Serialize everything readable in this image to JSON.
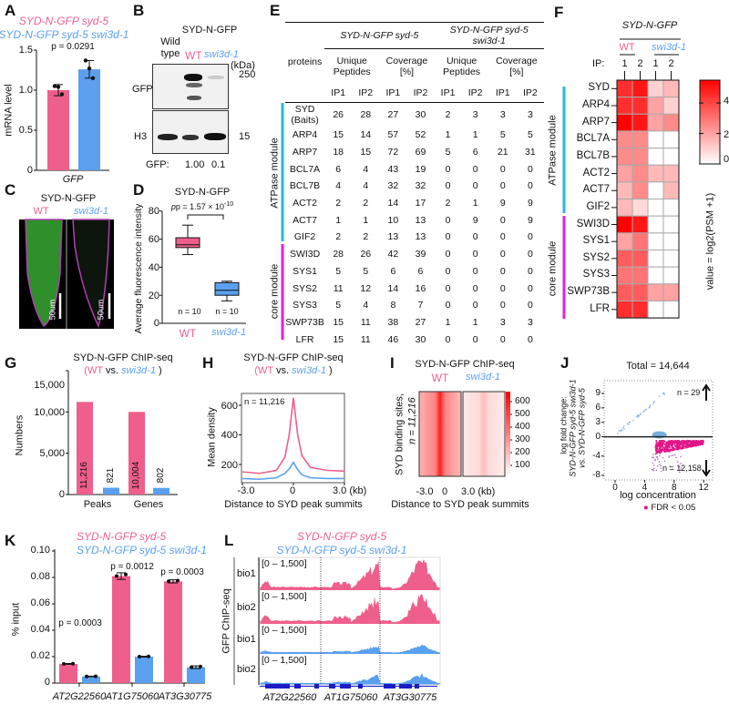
{
  "panel_labels": [
    "A",
    "B",
    "C",
    "D",
    "E",
    "F",
    "G",
    "H",
    "I",
    "J",
    "K",
    "L"
  ],
  "colors": {
    "wt": "#ef5f8c",
    "mutant": "#5aa0ee",
    "atpase_module": "#29b6e6",
    "core_module": "#e020e0",
    "heat": "#ff1a1a"
  },
  "legend": {
    "wt": "SYD-N-GFP syd-5",
    "mutant": "SYD-N-GFP syd-5 swi3d-1"
  },
  "B": {
    "header": "SYD-N-GFP",
    "wild_type": "Wild type",
    "wt": "WT",
    "mutant": "swi3d-1",
    "kda": "(kDa)",
    "m250": "250",
    "m15": "15",
    "gfp": "GFP",
    "h3": "H3",
    "quant_label": "GFP:",
    "quant_wt": "1.00",
    "quant_mut": "0.1"
  },
  "C": {
    "title": "SYD-N-GFP",
    "wt": "WT",
    "mutant": "swi3d-1",
    "scale": "50um"
  },
  "chipseq_title": "SYD-N-GFP ChIP-seq",
  "vs": {
    "open": "(",
    "wt": "WT",
    "vs": " vs. ",
    "mutant": "swi3d-1",
    "close": " )"
  },
  "table": {
    "group1": "SYD-N-GFP syd-5",
    "group2": "SYD-N-GFP syd-5 swi3d-1",
    "proteins": "proteins",
    "sub": [
      "Unique Peptides",
      "Coverage [%]",
      "Unique Peptides",
      "Coverage [%]"
    ],
    "ip": [
      "IP1",
      "IP2",
      "IP1",
      "IP2",
      "IP1",
      "IP2",
      "IP1",
      "IP2"
    ],
    "module_atpase": "ATPase module",
    "module_core": "core module",
    "rows": [
      {
        "name": "SYD (Baits)",
        "v": [
          26,
          28,
          27,
          30,
          2,
          3,
          3,
          3
        ],
        "module": "atpase"
      },
      {
        "name": "ARP4",
        "v": [
          15,
          14,
          57,
          52,
          1,
          1,
          5,
          5
        ],
        "module": "atpase"
      },
      {
        "name": "ARP7",
        "v": [
          18,
          15,
          72,
          69,
          5,
          6,
          21,
          31
        ],
        "module": "atpase"
      },
      {
        "name": "BCL7A",
        "v": [
          6,
          4,
          43,
          19,
          0,
          0,
          0,
          0
        ],
        "module": "atpase"
      },
      {
        "name": "BCL7B",
        "v": [
          4,
          4,
          32,
          32,
          0,
          0,
          0,
          0
        ],
        "module": "atpase"
      },
      {
        "name": "ACT2",
        "v": [
          2,
          2,
          14,
          17,
          2,
          1,
          9,
          9
        ],
        "module": "atpase"
      },
      {
        "name": "ACT7",
        "v": [
          1,
          1,
          10,
          13,
          0,
          9,
          0,
          9
        ],
        "module": "atpase"
      },
      {
        "name": "GIF2",
        "v": [
          2,
          2,
          13,
          13,
          0,
          0,
          0,
          0
        ],
        "module": "atpase"
      },
      {
        "name": "SWI3D",
        "v": [
          28,
          26,
          42,
          39,
          0,
          0,
          0,
          0
        ],
        "module": "core"
      },
      {
        "name": "SYS1",
        "v": [
          5,
          5,
          6,
          6,
          0,
          0,
          0,
          0
        ],
        "module": "core"
      },
      {
        "name": "SYS2",
        "v": [
          11,
          12,
          14,
          16,
          0,
          0,
          0,
          0
        ],
        "module": "core"
      },
      {
        "name": "SYS3",
        "v": [
          5,
          4,
          8,
          7,
          0,
          0,
          0,
          0
        ],
        "module": "core"
      },
      {
        "name": "SWP73B",
        "v": [
          15,
          11,
          38,
          27,
          1,
          1,
          3,
          3
        ],
        "module": "core"
      },
      {
        "name": "LFR",
        "v": [
          15,
          11,
          46,
          30,
          0,
          0,
          0,
          0
        ],
        "module": "core"
      }
    ]
  },
  "I": {
    "ylabel1": "SYD binding sites,",
    "ylabel2": "n = 11,216",
    "wt": "WT",
    "mutant": "swi3d-1",
    "ticks": [
      "600",
      "500",
      "400",
      "300",
      "200",
      "100"
    ],
    "x_ticks": [
      "-3.0",
      "0",
      "3.0 (kb)"
    ],
    "xlabel": "Distance to SYD peak summits"
  },
  "L": {
    "range": "[0 – 1,500]",
    "tracks": [
      "bio1",
      "bio2",
      "bio1",
      "bio2"
    ],
    "ylabel": "GFP ChIP-seq",
    "genes": [
      "AT2G22560",
      "AT1G75060",
      "AT3G30775"
    ]
  },
  "chart_data": [
    {
      "type": "bar",
      "panel": "A",
      "categories": [
        "GFP"
      ],
      "xlabel": "GFP",
      "ylabel": "mRNA level",
      "ylim": [
        0,
        1.5
      ],
      "yticks": [
        "0",
        "0.5",
        "1.0",
        "1.5"
      ],
      "yticks_v": [
        0,
        0.5,
        1.0,
        1.5
      ],
      "p": "p = 0.0291",
      "series": [
        {
          "name": "SYD-N-GFP syd-5",
          "values": [
            1.0
          ],
          "err": [
            0.07
          ],
          "points": [
            1.05,
            1.04,
            0.95
          ]
        },
        {
          "name": "SYD-N-GFP syd-5 swi3d-1",
          "values": [
            1.26
          ],
          "err": [
            0.11
          ],
          "points": [
            1.37,
            1.27,
            1.15
          ]
        }
      ]
    },
    {
      "type": "box",
      "panel": "D",
      "title": "SYD-N-GFP",
      "ylabel": "Average fluorescence intensity",
      "ylim": [
        0,
        80
      ],
      "yticks": [
        "0",
        "20",
        "40",
        "60",
        "80"
      ],
      "yticks_v": [
        0,
        20,
        40,
        60,
        80
      ],
      "p_base": "p = 1.57 × 10",
      "p_exp": "-10",
      "categories": [
        "WT",
        "swi3d-1"
      ],
      "n": [
        "n = 10",
        "n = 10"
      ],
      "boxes": [
        {
          "min": 49,
          "q1": 54,
          "median": 56,
          "q3": 61,
          "max": 70
        },
        {
          "min": 16,
          "q1": 20,
          "median": 23.5,
          "q3": 29,
          "max": 30
        }
      ]
    },
    {
      "type": "bar",
      "panel": "G",
      "title": "SYD-N-GFP ChIP-seq",
      "ylabel": "Numbers",
      "ylim": [
        0,
        15000
      ],
      "yticks": [
        "0",
        "5,000",
        "10,000",
        "15,000"
      ],
      "yticks_v": [
        0,
        5000,
        10000,
        15000
      ],
      "categories": [
        "Peaks",
        "Genes"
      ],
      "series": [
        {
          "name": "WT",
          "values": [
            11216,
            10004
          ],
          "labels": [
            "11,216",
            "10,004"
          ]
        },
        {
          "name": "swi3d-1",
          "values": [
            821,
            802
          ],
          "labels": [
            "821",
            "802"
          ]
        }
      ]
    },
    {
      "type": "line",
      "panel": "H",
      "title": "SYD-N-GFP ChIP-seq",
      "ylabel": "Mean density",
      "xlabel": "Distance to SYD peak summits",
      "annotation": "n = 11,216",
      "xlim": [
        -3,
        3
      ],
      "ylim": [
        80,
        680
      ],
      "xticks": [
        "-3.0",
        "0",
        "3.0 (kb)"
      ],
      "xticks_v": [
        -3,
        0,
        3
      ],
      "yticks": [
        "200",
        "400",
        "600"
      ],
      "yticks_v": [
        200,
        400,
        600
      ],
      "x": [
        -3,
        -2,
        -1,
        -0.5,
        -0.25,
        0,
        0.25,
        0.5,
        1,
        2,
        3
      ],
      "series": [
        {
          "name": "WT",
          "values": [
            150,
            140,
            160,
            250,
            400,
            650,
            400,
            260,
            180,
            160,
            155
          ]
        },
        {
          "name": "swi3d-1",
          "values": [
            105,
            100,
            110,
            140,
            170,
            215,
            165,
            130,
            110,
            105,
            105
          ]
        }
      ]
    },
    {
      "type": "scatter",
      "panel": "J",
      "title": "Total = 14,644",
      "xlabel": "log concentration",
      "ylabel_lines": [
        "log fold change:",
        "SYD-N-GFP syd-5 swi3d-1",
        "vs.  SYD-N-GFP syd-5"
      ],
      "xlim": [
        -1.5,
        13.5
      ],
      "ylim": [
        -9,
        11
      ],
      "xticks": [
        "0",
        "4",
        "8",
        "12"
      ],
      "xticks_v": [
        0,
        4,
        8,
        12
      ],
      "yticks": [
        "9",
        "6",
        "3",
        "0",
        "-4",
        "-8"
      ],
      "yticks_v": [
        9,
        6,
        3,
        0,
        -4,
        -8
      ],
      "up": "n = 29",
      "down": "n = 12,158",
      "legend": "FDR < 0.05"
    },
    {
      "type": "bar",
      "panel": "K",
      "ylabel": "% input",
      "ylim": [
        0,
        0.1
      ],
      "yticks": [
        "0",
        "0.02",
        "0.04",
        "0.06",
        "0.08",
        "0.10"
      ],
      "yticks_v": [
        0,
        0.02,
        0.04,
        0.06,
        0.08,
        0.1
      ],
      "categories": [
        "AT2G22560",
        "AT1G75060",
        "AT3G30775"
      ],
      "p": [
        "p = 0.0003",
        "p = 0.0012",
        "p = 0.0003"
      ],
      "series": [
        {
          "name": "SYD-N-GFP syd-5",
          "values": [
            0.0145,
            0.081,
            0.077
          ],
          "err": [
            0.0003,
            0.0025,
            0.0012
          ]
        },
        {
          "name": "SYD-N-GFP syd-5 swi3d-1",
          "values": [
            0.005,
            0.02,
            0.012
          ],
          "err": [
            0.0002,
            0.0003,
            0.001
          ]
        }
      ]
    },
    {
      "type": "heatmap",
      "panel": "F",
      "header": "SYD-N-GFP",
      "groups": [
        "WT",
        "swi3d-1"
      ],
      "ip_label": "IP:",
      "columns": [
        "1",
        "2",
        "1",
        "2"
      ],
      "rows": [
        "SYD",
        "ARP4",
        "ARP7",
        "BCL7A",
        "BCL7B",
        "ACT2",
        "ACT7",
        "GIF2",
        "SWI3D",
        "SYS1",
        "SYS2",
        "SYS3",
        "SWP73B",
        "LFR"
      ],
      "values": [
        [
          4.5,
          5,
          1,
          1.5
        ],
        [
          4.5,
          4.5,
          2,
          1
        ],
        [
          5.5,
          5,
          2,
          2.5
        ],
        [
          2.5,
          2.5,
          0,
          0
        ],
        [
          2.5,
          2.5,
          0,
          0
        ],
        [
          2,
          2.5,
          1.5,
          1.5
        ],
        [
          1.5,
          2.5,
          0,
          1.5
        ],
        [
          1.5,
          0.8,
          0,
          0
        ],
        [
          5.5,
          5,
          0,
          0
        ],
        [
          2,
          3,
          0,
          0
        ],
        [
          3.5,
          3.5,
          0,
          0
        ],
        [
          3,
          3,
          0,
          0
        ],
        [
          3.5,
          3.5,
          2,
          2
        ],
        [
          4.5,
          4.5,
          0,
          0
        ]
      ],
      "zlim": [
        0,
        5.5
      ],
      "cbar_ticks": [
        "4",
        "2",
        "0"
      ],
      "cbar_ticks_v": [
        4,
        2,
        0
      ],
      "cbar_label": "value = log2(PSM +1)",
      "module_atpase": "ATPase module",
      "module_core": "core module"
    }
  ]
}
